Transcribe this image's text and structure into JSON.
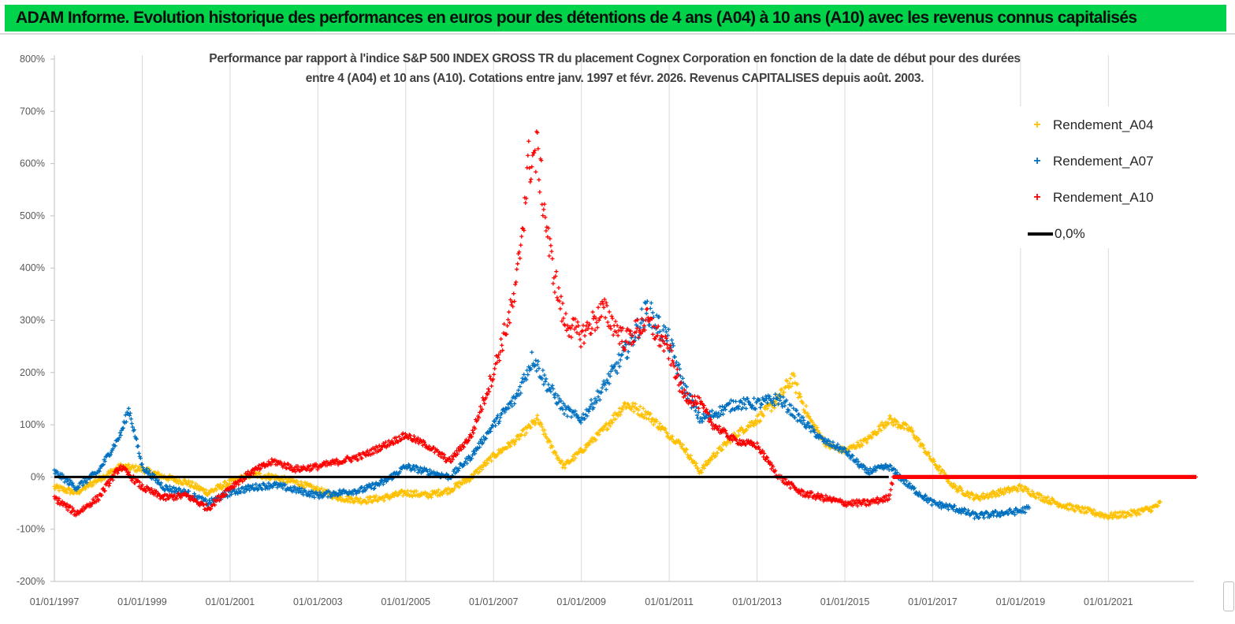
{
  "banner": {
    "title": "ADAM Informe. Evolution historique des performances en euros pour des détentions de 4 ans (A04) à 10 ans (A10) avec les revenus connus capitalisés",
    "color": "#00d34a"
  },
  "chart_data": {
    "type": "scatter",
    "title_line1": "Performance par rapport à l'indice S&P 500 INDEX GROSS TR  du placement Cognex Corporation en fonction de la date de début pour des durées",
    "title_line2": "entre 4 (A04) et 10 ans (A10).  Cotations entre janv. 1997 et févr. 2026. Revenus  CAPITALISES depuis août. 2003.",
    "xlabel": "",
    "ylabel": "",
    "x_range": [
      "1997-01-01",
      "2022-12-31"
    ],
    "y_range": [
      -200,
      800
    ],
    "y_ticks": [
      "800%",
      "700%",
      "600%",
      "500%",
      "400%",
      "300%",
      "200%",
      "100%",
      "0%",
      "-100%",
      "-200%"
    ],
    "y_tick_values": [
      800,
      700,
      600,
      500,
      400,
      300,
      200,
      100,
      0,
      -100,
      -200
    ],
    "x_ticks": [
      "01/01/1997",
      "01/01/1999",
      "01/01/2001",
      "01/01/2003",
      "01/01/2005",
      "01/01/2007",
      "01/01/2009",
      "01/01/2011",
      "01/01/2013",
      "01/01/2015",
      "01/01/2017",
      "01/01/2019",
      "01/01/2021"
    ],
    "x_tick_years": [
      1997,
      1999,
      2001,
      2003,
      2005,
      2007,
      2009,
      2011,
      2013,
      2015,
      2017,
      2019,
      2021
    ],
    "grid": "vertical",
    "legend_position": "top-right",
    "series": [
      {
        "name": "Rendement_A04",
        "color": "#ffc000",
        "points": [
          [
            1997.0,
            -20
          ],
          [
            1997.5,
            -30
          ],
          [
            1998.0,
            -5
          ],
          [
            1998.5,
            20
          ],
          [
            1999.0,
            15
          ],
          [
            1999.5,
            0
          ],
          [
            2000.0,
            -10
          ],
          [
            2000.5,
            -30
          ],
          [
            2001.0,
            -10
          ],
          [
            2001.5,
            5
          ],
          [
            2002.0,
            0
          ],
          [
            2002.5,
            -10
          ],
          [
            2003.0,
            -25
          ],
          [
            2003.5,
            -40
          ],
          [
            2004.0,
            -45
          ],
          [
            2004.5,
            -40
          ],
          [
            2005.0,
            -30
          ],
          [
            2005.5,
            -35
          ],
          [
            2006.0,
            -25
          ],
          [
            2006.5,
            0
          ],
          [
            2007.0,
            40
          ],
          [
            2007.5,
            70
          ],
          [
            2008.0,
            110
          ],
          [
            2008.3,
            60
          ],
          [
            2008.6,
            20
          ],
          [
            2009.0,
            50
          ],
          [
            2009.5,
            90
          ],
          [
            2010.0,
            140
          ],
          [
            2010.5,
            120
          ],
          [
            2011.0,
            80
          ],
          [
            2011.3,
            60
          ],
          [
            2011.7,
            10
          ],
          [
            2012.0,
            40
          ],
          [
            2012.5,
            80
          ],
          [
            2013.0,
            110
          ],
          [
            2013.5,
            150
          ],
          [
            2013.8,
            190
          ],
          [
            2014.2,
            110
          ],
          [
            2014.6,
            60
          ],
          [
            2015.0,
            50
          ],
          [
            2015.5,
            70
          ],
          [
            2016.0,
            110
          ],
          [
            2016.5,
            90
          ],
          [
            2017.0,
            30
          ],
          [
            2017.5,
            -20
          ],
          [
            2018.0,
            -40
          ],
          [
            2018.5,
            -30
          ],
          [
            2019.0,
            -20
          ],
          [
            2019.5,
            -40
          ],
          [
            2020.0,
            -55
          ],
          [
            2020.5,
            -65
          ],
          [
            2021.0,
            -75
          ],
          [
            2021.5,
            -70
          ],
          [
            2022.0,
            -60
          ],
          [
            2022.2,
            -50
          ]
        ]
      },
      {
        "name": "Rendement_A07",
        "color": "#0070c0",
        "points": [
          [
            1997.0,
            10
          ],
          [
            1997.5,
            -20
          ],
          [
            1998.0,
            10
          ],
          [
            1998.5,
            80
          ],
          [
            1998.7,
            130
          ],
          [
            1999.0,
            20
          ],
          [
            1999.5,
            -20
          ],
          [
            2000.0,
            -30
          ],
          [
            2000.5,
            -50
          ],
          [
            2001.0,
            -30
          ],
          [
            2001.5,
            -20
          ],
          [
            2002.0,
            -15
          ],
          [
            2002.5,
            -25
          ],
          [
            2003.0,
            -35
          ],
          [
            2003.5,
            -30
          ],
          [
            2004.0,
            -25
          ],
          [
            2004.5,
            -10
          ],
          [
            2005.0,
            20
          ],
          [
            2005.5,
            10
          ],
          [
            2006.0,
            0
          ],
          [
            2006.5,
            40
          ],
          [
            2007.0,
            100
          ],
          [
            2007.5,
            150
          ],
          [
            2007.9,
            230
          ],
          [
            2008.2,
            180
          ],
          [
            2008.6,
            130
          ],
          [
            2009.0,
            110
          ],
          [
            2009.5,
            170
          ],
          [
            2010.0,
            240
          ],
          [
            2010.5,
            320
          ],
          [
            2011.0,
            260
          ],
          [
            2011.3,
            180
          ],
          [
            2011.7,
            110
          ],
          [
            2012.0,
            120
          ],
          [
            2012.5,
            140
          ],
          [
            2013.0,
            140
          ],
          [
            2013.5,
            150
          ],
          [
            2014.0,
            110
          ],
          [
            2014.5,
            70
          ],
          [
            2015.0,
            50
          ],
          [
            2015.5,
            10
          ],
          [
            2016.0,
            20
          ],
          [
            2016.5,
            -20
          ],
          [
            2017.0,
            -50
          ],
          [
            2017.5,
            -60
          ],
          [
            2018.0,
            -75
          ],
          [
            2018.5,
            -70
          ],
          [
            2019.0,
            -65
          ],
          [
            2019.2,
            -60
          ]
        ]
      },
      {
        "name": "Rendement_A10",
        "color": "#ff0000",
        "points": [
          [
            1997.0,
            -40
          ],
          [
            1997.5,
            -70
          ],
          [
            1998.0,
            -40
          ],
          [
            1998.5,
            20
          ],
          [
            1999.0,
            -20
          ],
          [
            1999.5,
            -40
          ],
          [
            2000.0,
            -35
          ],
          [
            2000.5,
            -60
          ],
          [
            2001.0,
            -20
          ],
          [
            2001.5,
            10
          ],
          [
            2002.0,
            30
          ],
          [
            2002.5,
            15
          ],
          [
            2003.0,
            20
          ],
          [
            2003.5,
            30
          ],
          [
            2004.0,
            40
          ],
          [
            2004.5,
            60
          ],
          [
            2005.0,
            80
          ],
          [
            2005.5,
            60
          ],
          [
            2006.0,
            30
          ],
          [
            2006.5,
            80
          ],
          [
            2007.0,
            200
          ],
          [
            2007.5,
            350
          ],
          [
            2007.8,
            600
          ],
          [
            2008.0,
            620
          ],
          [
            2008.3,
            420
          ],
          [
            2008.6,
            300
          ],
          [
            2009.0,
            270
          ],
          [
            2009.5,
            320
          ],
          [
            2010.0,
            260
          ],
          [
            2010.5,
            300
          ],
          [
            2011.0,
            240
          ],
          [
            2011.3,
            160
          ],
          [
            2011.7,
            140
          ],
          [
            2012.0,
            100
          ],
          [
            2012.5,
            70
          ],
          [
            2013.0,
            60
          ],
          [
            2013.5,
            0
          ],
          [
            2014.0,
            -30
          ],
          [
            2014.5,
            -40
          ],
          [
            2015.0,
            -50
          ],
          [
            2015.5,
            -50
          ],
          [
            2016.0,
            -40
          ],
          [
            2016.1,
            0
          ],
          [
            2017.0,
            0
          ],
          [
            2018.0,
            0
          ],
          [
            2019.0,
            0
          ],
          [
            2020.0,
            0
          ],
          [
            2021.0,
            0
          ],
          [
            2022.0,
            0
          ],
          [
            2023.0,
            0
          ]
        ]
      },
      {
        "name": "0,0%",
        "color": "#000000",
        "points": [
          [
            1997.0,
            0
          ],
          [
            2016.0,
            0
          ]
        ]
      }
    ]
  }
}
